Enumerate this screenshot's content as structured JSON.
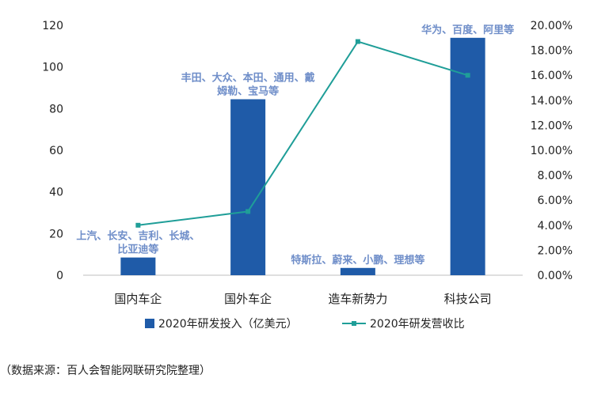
{
  "chart_data": {
    "type": "bar+line",
    "categories": [
      "国内车企",
      "国外车企",
      "造车新势力",
      "科技公司"
    ],
    "series": [
      {
        "name": "2020年研发投入（亿美元）",
        "type": "bar",
        "axis": "left",
        "values": [
          8.5,
          84.5,
          3.5,
          114
        ],
        "color": "#1f5ba8"
      },
      {
        "name": "2020年研发营收比",
        "type": "line",
        "axis": "right",
        "values": [
          4.0,
          5.1,
          18.7,
          16.0
        ],
        "color": "#1f9e98"
      }
    ],
    "y_left": {
      "min": 0,
      "max": 120,
      "ticks": [
        "0",
        "20",
        "40",
        "60",
        "80",
        "100",
        "120"
      ]
    },
    "y_right": {
      "min": 0,
      "max": 20,
      "ticks": [
        "0.00%",
        "2.00%",
        "4.00%",
        "6.00%",
        "8.00%",
        "10.00%",
        "12.00%",
        "14.00%",
        "16.00%",
        "18.00%",
        "20.00%"
      ]
    },
    "annotations": [
      {
        "category": 0,
        "lines": [
          "上汽、长安、吉利、长城、",
          "比亚迪等"
        ]
      },
      {
        "category": 1,
        "lines": [
          "丰田、大众、本田、通用、戴",
          "姆勒、宝马等"
        ]
      },
      {
        "category": 2,
        "lines": [
          "特斯拉、蔚来、小鹏、理想等"
        ]
      },
      {
        "category": 3,
        "lines": [
          "华为、百度、阿里等"
        ]
      }
    ],
    "legend_position": "bottom",
    "grid": false
  },
  "source_note": "（数据来源：百人会智能网联研究院整理）"
}
